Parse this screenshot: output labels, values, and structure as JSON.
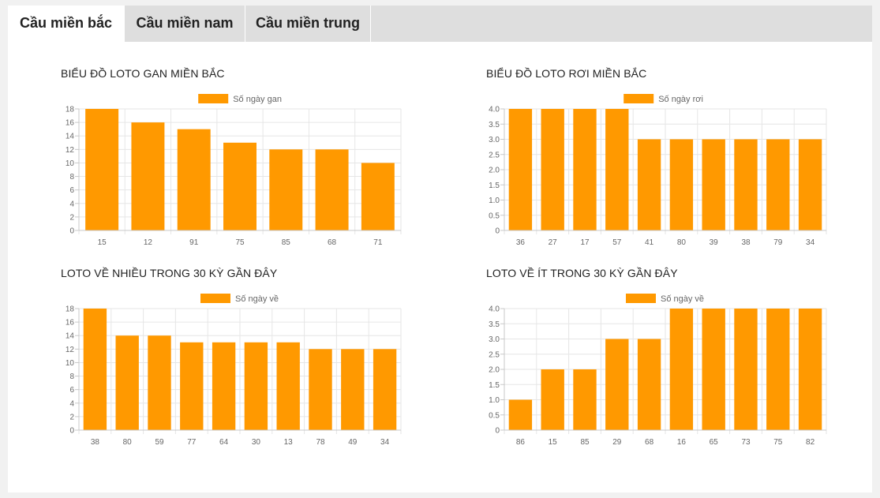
{
  "tabs": [
    {
      "label": "Cầu miền bắc",
      "active": true
    },
    {
      "label": "Cầu miền nam",
      "active": false
    },
    {
      "label": "Cầu miền trung",
      "active": false
    }
  ],
  "colors": {
    "bar": "#ff9900",
    "grid": "#e6e6e6",
    "axis": "#c8c8c8",
    "text": "#666666"
  },
  "chart_data": [
    {
      "type": "bar",
      "title": "BIỂU ĐỒ LOTO GAN MIỀN BẮC",
      "legend_position": "top",
      "categories": [
        "15",
        "12",
        "91",
        "75",
        "85",
        "68",
        "71"
      ],
      "series": [
        {
          "name": "Số ngày gan",
          "values": [
            18,
            16,
            15,
            13,
            12,
            12,
            10
          ]
        }
      ],
      "ylim": [
        0,
        18
      ],
      "yticks": [
        0,
        2,
        4,
        6,
        8,
        10,
        12,
        14,
        16,
        18
      ],
      "ytick_labels": [
        "0",
        "2",
        "4",
        "6",
        "8",
        "10",
        "12",
        "14",
        "16",
        "18"
      ],
      "grid": true
    },
    {
      "type": "bar",
      "title": "BIỂU ĐỒ LOTO RƠI MIỀN BẮC",
      "legend_position": "top",
      "categories": [
        "36",
        "27",
        "17",
        "57",
        "41",
        "80",
        "39",
        "38",
        "79",
        "34"
      ],
      "series": [
        {
          "name": "Số ngày rơi",
          "values": [
            4,
            4,
            4,
            4,
            3,
            3,
            3,
            3,
            3,
            3
          ]
        }
      ],
      "ylim": [
        0,
        4
      ],
      "yticks": [
        0,
        0.5,
        1,
        1.5,
        2,
        2.5,
        3,
        3.5,
        4
      ],
      "ytick_labels": [
        "0",
        "0.5",
        "1.0",
        "1.5",
        "2.0",
        "2.5",
        "3.0",
        "3.5",
        "4.0"
      ],
      "grid": true
    },
    {
      "type": "bar",
      "title": "LOTO VỀ NHIỀU TRONG 30 KỲ GẦN ĐÂY",
      "legend_position": "top",
      "categories": [
        "38",
        "80",
        "59",
        "77",
        "64",
        "30",
        "13",
        "78",
        "49",
        "34"
      ],
      "series": [
        {
          "name": "Số ngày về",
          "values": [
            18,
            14,
            14,
            13,
            13,
            13,
            13,
            12,
            12,
            12
          ]
        }
      ],
      "ylim": [
        0,
        18
      ],
      "yticks": [
        0,
        2,
        4,
        6,
        8,
        10,
        12,
        14,
        16,
        18
      ],
      "ytick_labels": [
        "0",
        "2",
        "4",
        "6",
        "8",
        "10",
        "12",
        "14",
        "16",
        "18"
      ],
      "grid": true
    },
    {
      "type": "bar",
      "title": "LOTO VỀ ÍT TRONG 30 KỲ GẦN ĐÂY",
      "legend_position": "top",
      "categories": [
        "86",
        "15",
        "85",
        "29",
        "68",
        "16",
        "65",
        "73",
        "75",
        "82"
      ],
      "series": [
        {
          "name": "Số ngày về",
          "values": [
            1,
            2,
            2,
            3,
            3,
            4,
            4,
            4,
            4,
            4
          ]
        }
      ],
      "ylim": [
        0,
        4
      ],
      "yticks": [
        0,
        0.5,
        1,
        1.5,
        2,
        2.5,
        3,
        3.5,
        4
      ],
      "ytick_labels": [
        "0",
        "0.5",
        "1.0",
        "1.5",
        "2.0",
        "2.5",
        "3.0",
        "3.5",
        "4.0"
      ],
      "grid": true
    }
  ]
}
